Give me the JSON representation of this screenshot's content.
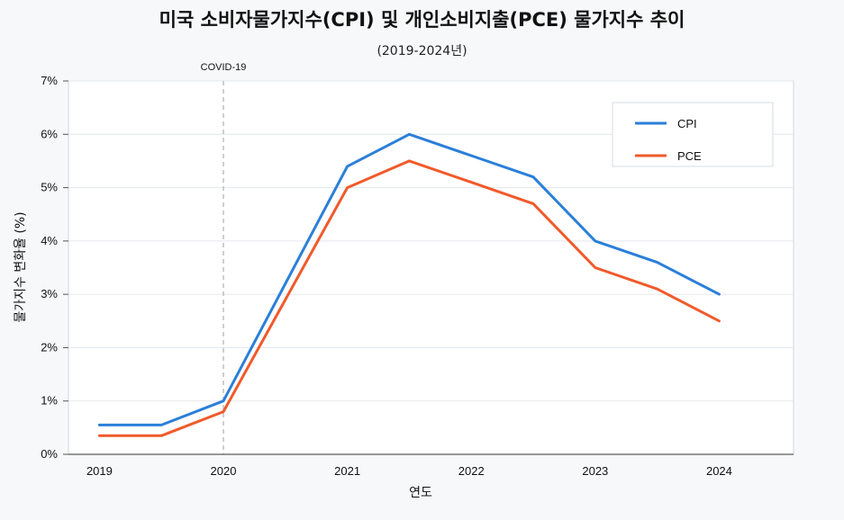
{
  "chart_data": {
    "type": "line",
    "title": "미국 소비자물가지수(CPI) 및 개인소비지출(PCE) 물가지수 추이",
    "subtitle": "(2019-2024년)",
    "xlabel": "연도",
    "ylabel": "물가지수 변화율 (%)",
    "xlim": [
      2018.75,
      2024.6
    ],
    "ylim": [
      0,
      7
    ],
    "x_ticks": [
      2019,
      2020,
      2021,
      2022,
      2023,
      2024
    ],
    "x_tick_labels": [
      "2019",
      "2020",
      "2021",
      "2022",
      "2023",
      "2024"
    ],
    "y_ticks": [
      0,
      1,
      2,
      3,
      4,
      5,
      6,
      7
    ],
    "y_tick_labels": [
      "0%",
      "1%",
      "2%",
      "3%",
      "4%",
      "5%",
      "6%",
      "7%"
    ],
    "grid": true,
    "legend_position": "top-right",
    "series": [
      {
        "name": "CPI",
        "color": "#2b7fd9",
        "x": [
          2019,
          2019.5,
          2020,
          2021,
          2021.5,
          2022,
          2022.5,
          2023,
          2023.5,
          2024
        ],
        "values": [
          0.55,
          0.55,
          1.0,
          5.4,
          6.0,
          5.6,
          5.2,
          4.0,
          3.6,
          3.0
        ]
      },
      {
        "name": "PCE",
        "color": "#f15a2b",
        "x": [
          2019,
          2019.5,
          2020,
          2021,
          2021.5,
          2022,
          2022.5,
          2023,
          2023.5,
          2024
        ],
        "values": [
          0.35,
          0.35,
          0.8,
          5.0,
          5.5,
          5.1,
          4.7,
          3.5,
          3.1,
          2.5
        ]
      }
    ],
    "annotations": [
      {
        "x": 2020,
        "label": "COVID-19",
        "style": "dashed-vertical"
      }
    ]
  }
}
